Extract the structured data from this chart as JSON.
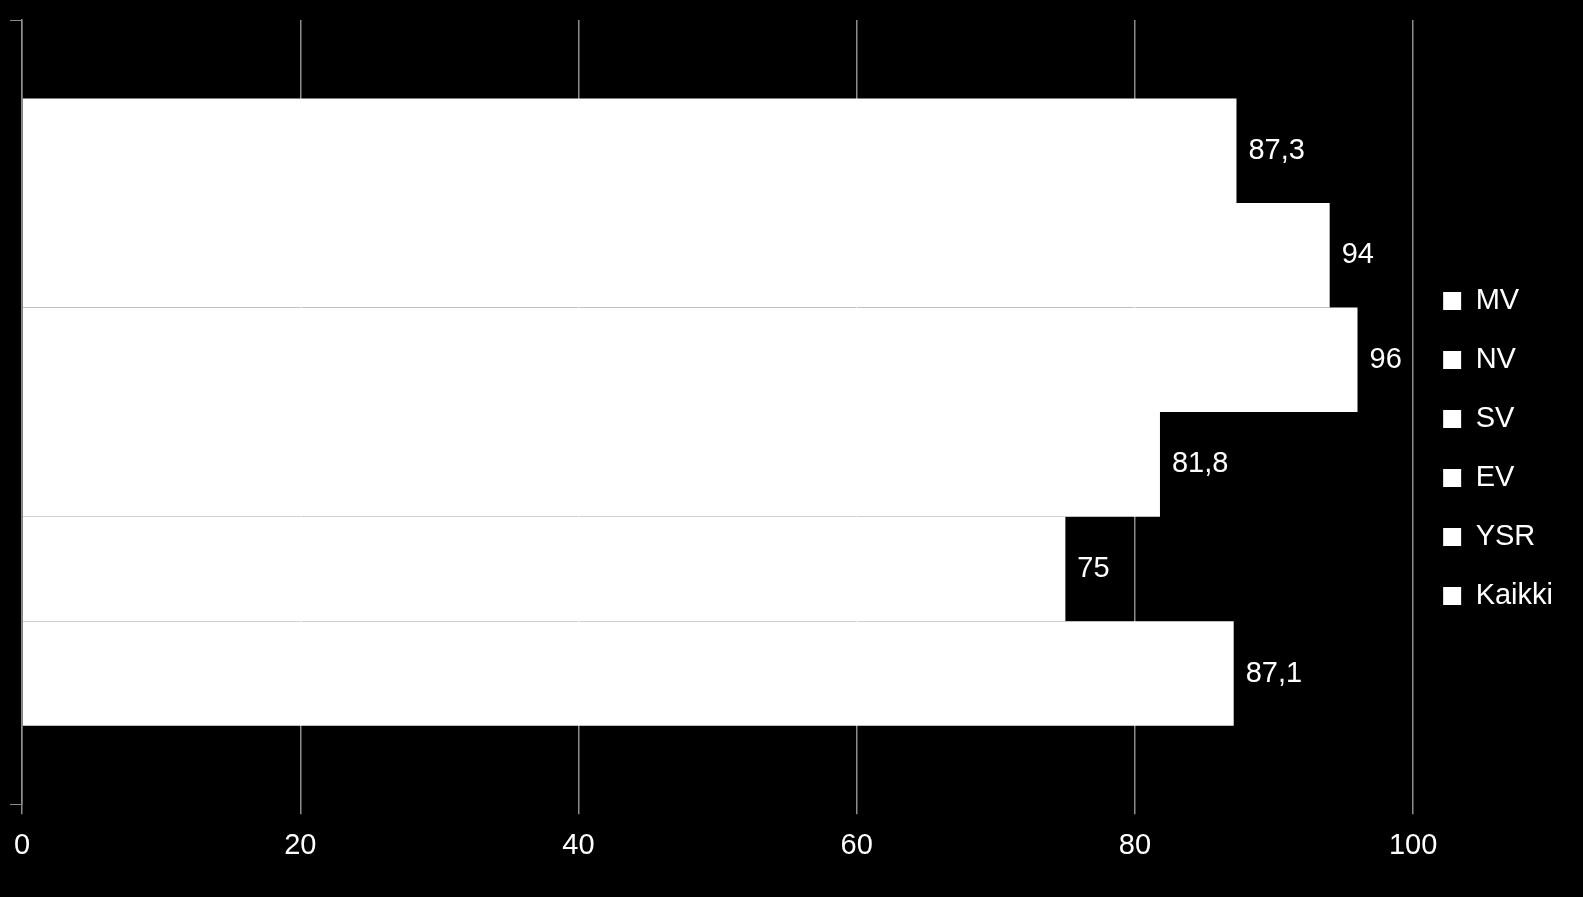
{
  "chart_data": {
    "type": "bar",
    "orientation": "horizontal",
    "categories": [
      null
    ],
    "series": [
      {
        "name": "MV",
        "color": "#ffffff",
        "values": [
          87.3
        ],
        "value_labels": [
          "87,3"
        ]
      },
      {
        "name": "NV",
        "color": "#ffffff",
        "values": [
          94
        ],
        "value_labels": [
          "94"
        ]
      },
      {
        "name": "SV",
        "color": "#ffffff",
        "values": [
          96
        ],
        "value_labels": [
          "96"
        ]
      },
      {
        "name": "EV",
        "color": "#ffffff",
        "values": [
          81.8
        ],
        "value_labels": [
          "81,8"
        ]
      },
      {
        "name": "YSR",
        "color": "#ffffff",
        "values": [
          75
        ],
        "value_labels": [
          "75"
        ]
      },
      {
        "name": "Kaikki",
        "color": "#ffffff",
        "values": [
          87.1
        ],
        "value_labels": [
          "87,1"
        ]
      }
    ],
    "xlim": [
      0,
      100
    ],
    "xticks": [
      0,
      20,
      40,
      60,
      80,
      100
    ],
    "grid": "x",
    "legend": "right",
    "tick_labels": "x"
  }
}
